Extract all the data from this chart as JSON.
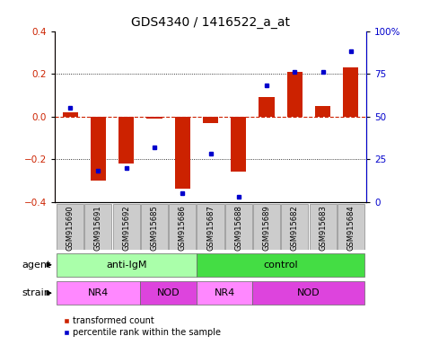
{
  "title": "GDS4340 / 1416522_a_at",
  "samples": [
    "GSM915690",
    "GSM915691",
    "GSM915692",
    "GSM915685",
    "GSM915686",
    "GSM915687",
    "GSM915688",
    "GSM915689",
    "GSM915682",
    "GSM915683",
    "GSM915684"
  ],
  "red_bars": [
    0.02,
    -0.3,
    -0.22,
    -0.01,
    -0.34,
    -0.03,
    -0.26,
    0.09,
    0.21,
    0.05,
    0.23
  ],
  "blue_dot_pct": [
    55,
    18,
    20,
    32,
    5,
    28,
    3,
    68,
    76,
    76,
    88
  ],
  "ylim": [
    -0.4,
    0.4
  ],
  "y2lim": [
    0,
    100
  ],
  "yticks": [
    -0.4,
    -0.2,
    0.0,
    0.2,
    0.4
  ],
  "y2ticks": [
    0,
    25,
    50,
    75,
    100
  ],
  "y2ticklabels": [
    "0",
    "25",
    "50",
    "75",
    "100%"
  ],
  "agent_groups": [
    {
      "label": "anti-IgM",
      "start": 0,
      "end": 5,
      "color": "#aaffaa"
    },
    {
      "label": "control",
      "start": 5,
      "end": 11,
      "color": "#44dd44"
    }
  ],
  "strain_groups": [
    {
      "label": "NR4",
      "start": 0,
      "end": 3,
      "color": "#ff88ff"
    },
    {
      "label": "NOD",
      "start": 3,
      "end": 5,
      "color": "#dd44dd"
    },
    {
      "label": "NR4",
      "start": 5,
      "end": 7,
      "color": "#ff88ff"
    },
    {
      "label": "NOD",
      "start": 7,
      "end": 11,
      "color": "#dd44dd"
    }
  ],
  "red_color": "#cc2200",
  "blue_color": "#0000cc",
  "bar_width": 0.55,
  "legend_red": "transformed count",
  "legend_blue": "percentile rank within the sample",
  "title_fontsize": 10,
  "sample_fontsize": 6,
  "label_fontsize": 8,
  "tick_fontsize": 7.5
}
